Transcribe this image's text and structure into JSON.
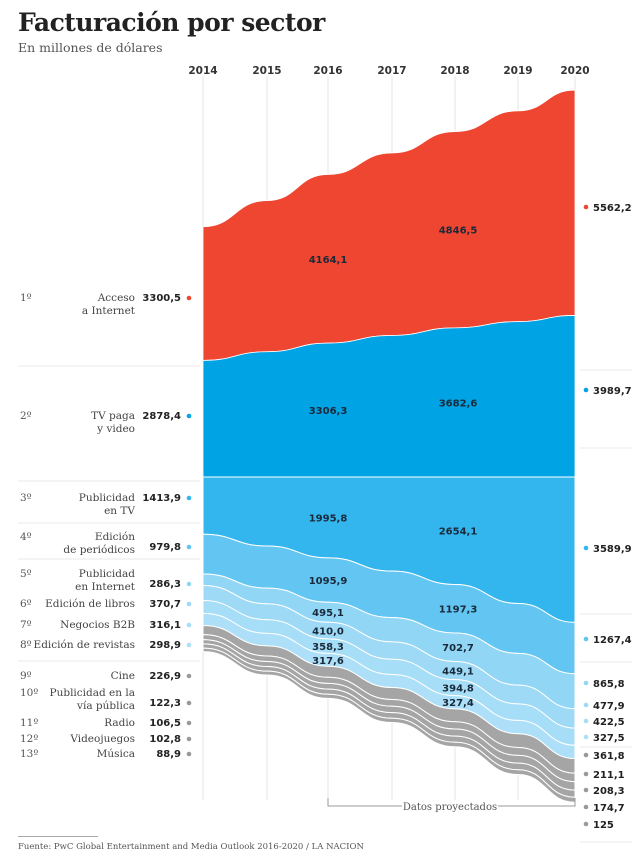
{
  "chart_data": {
    "type": "area",
    "title": "Facturación por sector",
    "subtitle": "En millones de dólares",
    "years": [
      "2014",
      "2015",
      "2016",
      "2017",
      "2018",
      "2019",
      "2020"
    ],
    "projected_label": "Datos proyectados",
    "projected_from": "2016",
    "source": "Fuente: PwC Global Entertainment and Media Outlook 2016-2020 / LA NACION",
    "grid": "vertical",
    "series": [
      {
        "rank": "1º",
        "name": [
          "Acceso",
          "a Internet"
        ],
        "color": "#ef4631",
        "values": [
          3300.5,
          null,
          4164.1,
          null,
          4846.5,
          null,
          5562.2
        ],
        "labels": {
          "2014": "3300,5",
          "2016": "4164,1",
          "2018": "4846,5",
          "2020": "5562,2"
        }
      },
      {
        "rank": "2º",
        "name": [
          "TV paga",
          "y video"
        ],
        "color": "#00a3e4",
        "values": [
          2878.4,
          null,
          3306.3,
          null,
          3682.6,
          null,
          3989.7
        ],
        "labels": {
          "2014": "2878,4",
          "2016": "3306,3",
          "2018": "3682,6",
          "2020": "3989,7"
        }
      },
      {
        "rank": "3º",
        "name": [
          "Publicidad",
          "en TV"
        ],
        "color": "#33b5ee",
        "values": [
          1413.9,
          null,
          1995.8,
          null,
          2654.1,
          null,
          3589.9
        ],
        "labels": {
          "2014": "1413,9",
          "2016": "1995,8",
          "2018": "2654,1",
          "2020": "3589,9"
        }
      },
      {
        "rank": "4º",
        "name": [
          "Edición",
          "de periódicos"
        ],
        "color": "#62c5f2",
        "values": [
          979.8,
          null,
          1095.9,
          null,
          1197.3,
          null,
          1267.4
        ],
        "labels": {
          "2014": "979,8",
          "2016": "1095,9",
          "2018": "1197,3",
          "2020": "1267,4"
        }
      },
      {
        "rank": "5º",
        "name": [
          "Publicidad",
          "en Internet"
        ],
        "color": "#92d6f6",
        "values": [
          286.3,
          null,
          495.1,
          null,
          702.7,
          null,
          865.8
        ],
        "labels": {
          "2014": "286,3",
          "2016": "495,1",
          "2018": "702,7",
          "2020": "865,8"
        }
      },
      {
        "rank": "6º",
        "name": [
          "Edición de libros"
        ],
        "color": "#9ed9f6",
        "values": [
          370.7,
          null,
          410.0,
          null,
          449.1,
          null,
          477.9
        ],
        "labels": {
          "2014": "370,7",
          "2016": "410,0",
          "2018": "449,1",
          "2020": "477,9"
        }
      },
      {
        "rank": "7º",
        "name": [
          "Negocios B2B"
        ],
        "color": "#a6ddf7",
        "values": [
          316.1,
          null,
          358.3,
          null,
          394.8,
          null,
          422.5
        ],
        "labels": {
          "2014": "316,1",
          "2016": "358,3",
          "2018": "394,8",
          "2020": "422,5"
        }
      },
      {
        "rank": "8º",
        "name": [
          "Edición de revistas"
        ],
        "color": "#ade0f8",
        "values": [
          298.9,
          null,
          317.6,
          null,
          327.4,
          null,
          327.5
        ],
        "labels": {
          "2014": "298,9",
          "2016": "317,6",
          "2018": "327,4",
          "2020": "327,5"
        }
      },
      {
        "rank": "9º",
        "name": [
          "Cine"
        ],
        "color": "#a5a5a5",
        "values": [
          226.9,
          null,
          null,
          null,
          null,
          null,
          361.8
        ],
        "labels": {
          "2014": "226,9",
          "2020": "361,8"
        }
      },
      {
        "rank": "10º",
        "name": [
          "Publicidad en la",
          "vía pública"
        ],
        "color": "#a5a5a5",
        "values": [
          122.3,
          null,
          null,
          null,
          null,
          null,
          211.1
        ],
        "labels": {
          "2014": "122,3",
          "2020": "211,1"
        }
      },
      {
        "rank": "11º",
        "name": [
          "Radio"
        ],
        "color": "#a5a5a5",
        "values": [
          106.5,
          null,
          null,
          null,
          null,
          null,
          208.3
        ],
        "labels": {
          "2014": "106,5",
          "2020": "208,3"
        }
      },
      {
        "rank": "12º",
        "name": [
          "Videojuegos"
        ],
        "color": "#a5a5a5",
        "values": [
          102.8,
          null,
          null,
          null,
          null,
          null,
          174.7
        ],
        "labels": {
          "2014": "102,8",
          "2020": "174,7"
        }
      },
      {
        "rank": "13º",
        "name": [
          "Música"
        ],
        "color": "#a5a5a5",
        "values": [
          88.9,
          null,
          null,
          null,
          null,
          null,
          125
        ],
        "labels": {
          "2014": "88,9",
          "2020": "125"
        }
      }
    ]
  }
}
